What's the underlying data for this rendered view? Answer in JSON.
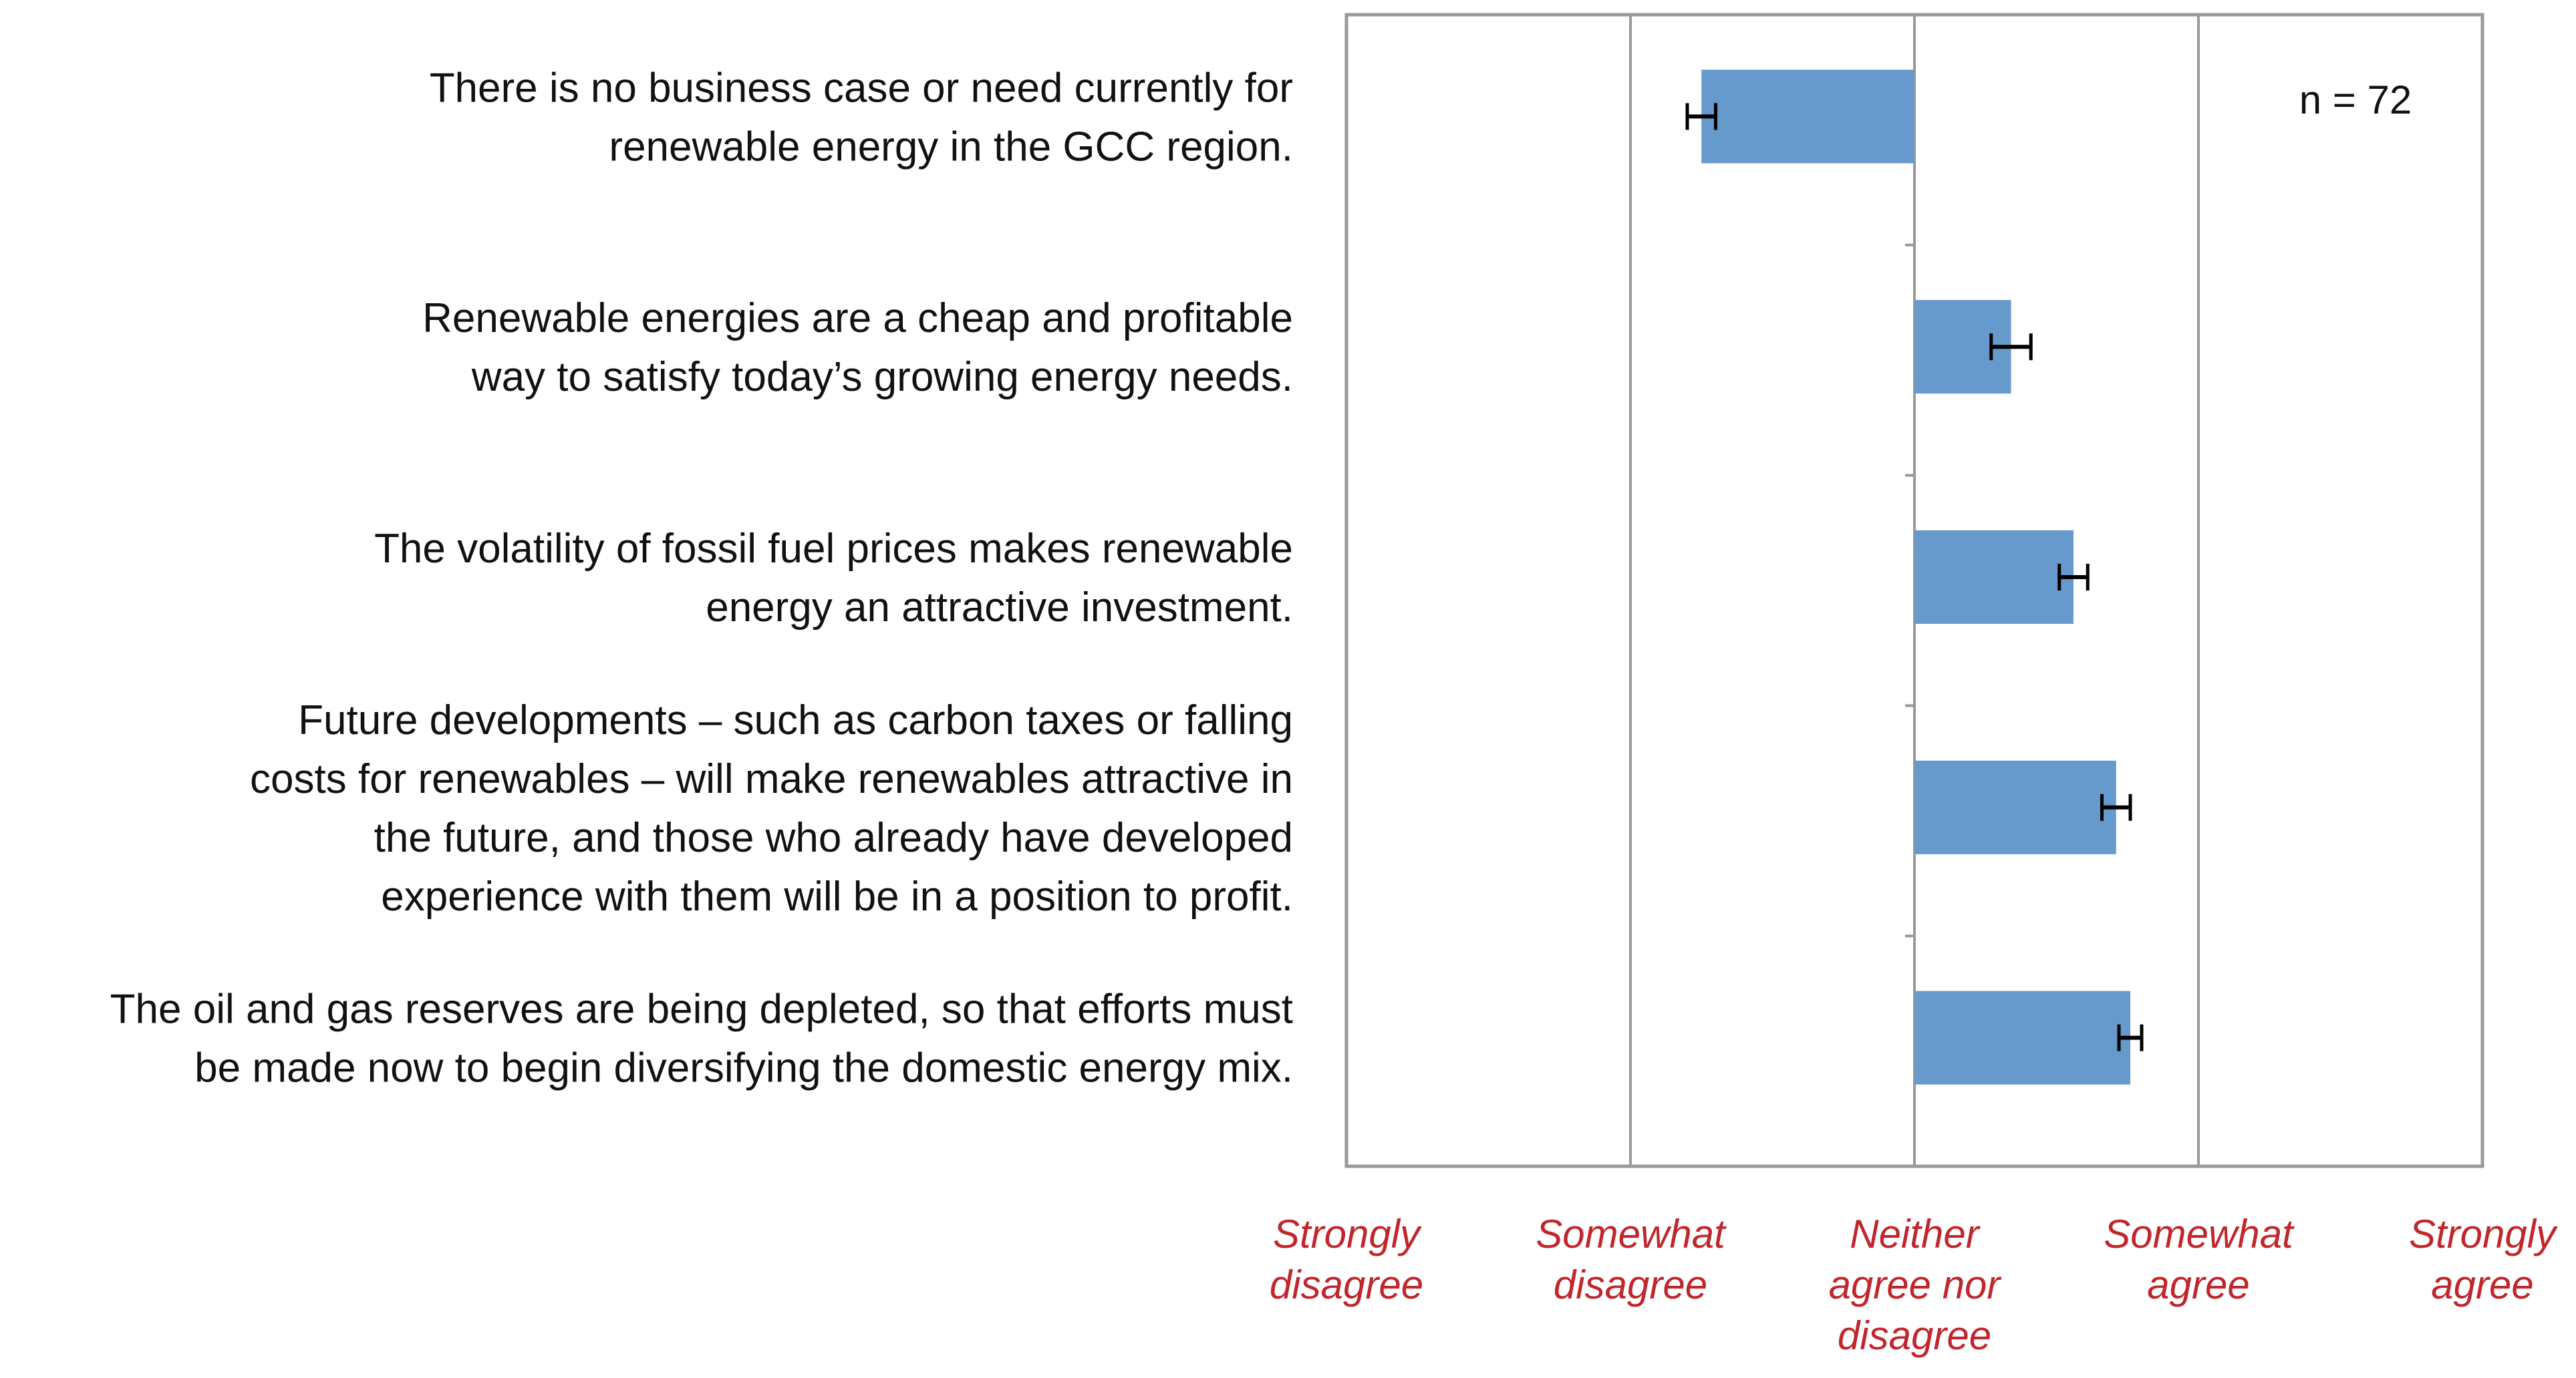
{
  "chart_data": {
    "type": "bar",
    "orientation": "horizontal",
    "categories": [
      [
        "There is no business case or need currently for",
        "renewable energy in the GCC region."
      ],
      [
        "Renewable energies are a cheap and profitable",
        "way to satisfy today’s growing energy needs."
      ],
      [
        "The volatility of fossil fuel prices makes renewable",
        "energy an attractive investment."
      ],
      [
        "Future developments – such as carbon taxes or falling",
        "costs for renewables – will make renewables attractive in",
        "the future, and those who already have developed",
        "experience with them will be in a position to profit."
      ],
      [
        "The oil and gas reserves are being depleted, so that efforts must",
        "be made now to begin diversifying the domestic energy mix."
      ]
    ],
    "values": [
      -0.75,
      0.34,
      0.56,
      0.71,
      0.76
    ],
    "errors": [
      0.05,
      0.07,
      0.05,
      0.05,
      0.04
    ],
    "xlim": [
      -2,
      2
    ],
    "x_ticks": [
      [
        "Strongly",
        "disagree"
      ],
      [
        "Somewhat",
        "disagree"
      ],
      [
        "Neither",
        "agree nor",
        "disagree"
      ],
      [
        "Somewhat",
        "agree"
      ],
      [
        "Strongly",
        "agree"
      ]
    ],
    "gridlines": [
      -1,
      0,
      1
    ],
    "grid": true,
    "annotation": "n = 72",
    "colors": {
      "bar": "#6699cc",
      "error_bar": "#000000",
      "tick_label": "#c0272d",
      "grid": "#999999",
      "frame": "#999999"
    }
  }
}
